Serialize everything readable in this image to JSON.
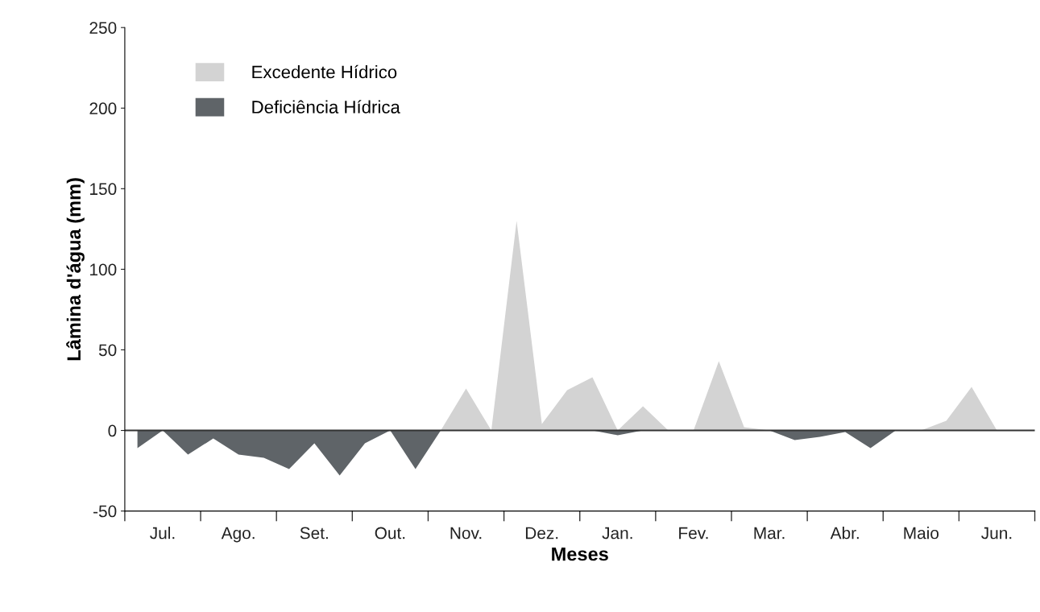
{
  "chart_data": {
    "type": "area",
    "xlabel": "Meses",
    "ylabel": "Lâmina d'água (mm)",
    "categories": [
      null,
      "Jul.",
      null,
      null,
      "Ago.",
      null,
      null,
      "Set.",
      null,
      null,
      "Out.",
      null,
      null,
      "Nov.",
      null,
      null,
      "Dez.",
      null,
      null,
      "Jan.",
      null,
      null,
      "Fev.",
      null,
      null,
      "Mar.",
      null,
      null,
      "Abr.",
      null,
      null,
      "Maio",
      null,
      null,
      "Jun.",
      null
    ],
    "series": [
      {
        "name": "Excedente Hídrico",
        "color": "#d3d3d3",
        "values": [
          0,
          0,
          0,
          0,
          0,
          0,
          0,
          0,
          0,
          0,
          0,
          0,
          0,
          26,
          0,
          130,
          4,
          25,
          33,
          0,
          15,
          0,
          0,
          43,
          2,
          0,
          0,
          0,
          0,
          0,
          0,
          0,
          6,
          27,
          0,
          0
        ]
      },
      {
        "name": "Deficiência Hídrica",
        "color": "#5f6468",
        "values": [
          -11,
          0,
          -15,
          -5,
          -15,
          -17,
          -24,
          -8,
          -28,
          -8,
          0,
          -24,
          0,
          0,
          0,
          0,
          0,
          0,
          0,
          -3,
          0,
          0,
          0,
          0,
          0,
          0,
          -6,
          -4,
          -1,
          -11,
          0,
          0,
          0,
          0,
          0,
          0
        ]
      }
    ],
    "ylim": [
      -50,
      250
    ],
    "yticks": [
      -50,
      0,
      50,
      100,
      150,
      200,
      250
    ],
    "ref_lines": [
      {
        "axis": "y",
        "value": 0,
        "color": "#333333",
        "line_style": "solid"
      }
    ],
    "legend": "top left",
    "grid": false
  }
}
